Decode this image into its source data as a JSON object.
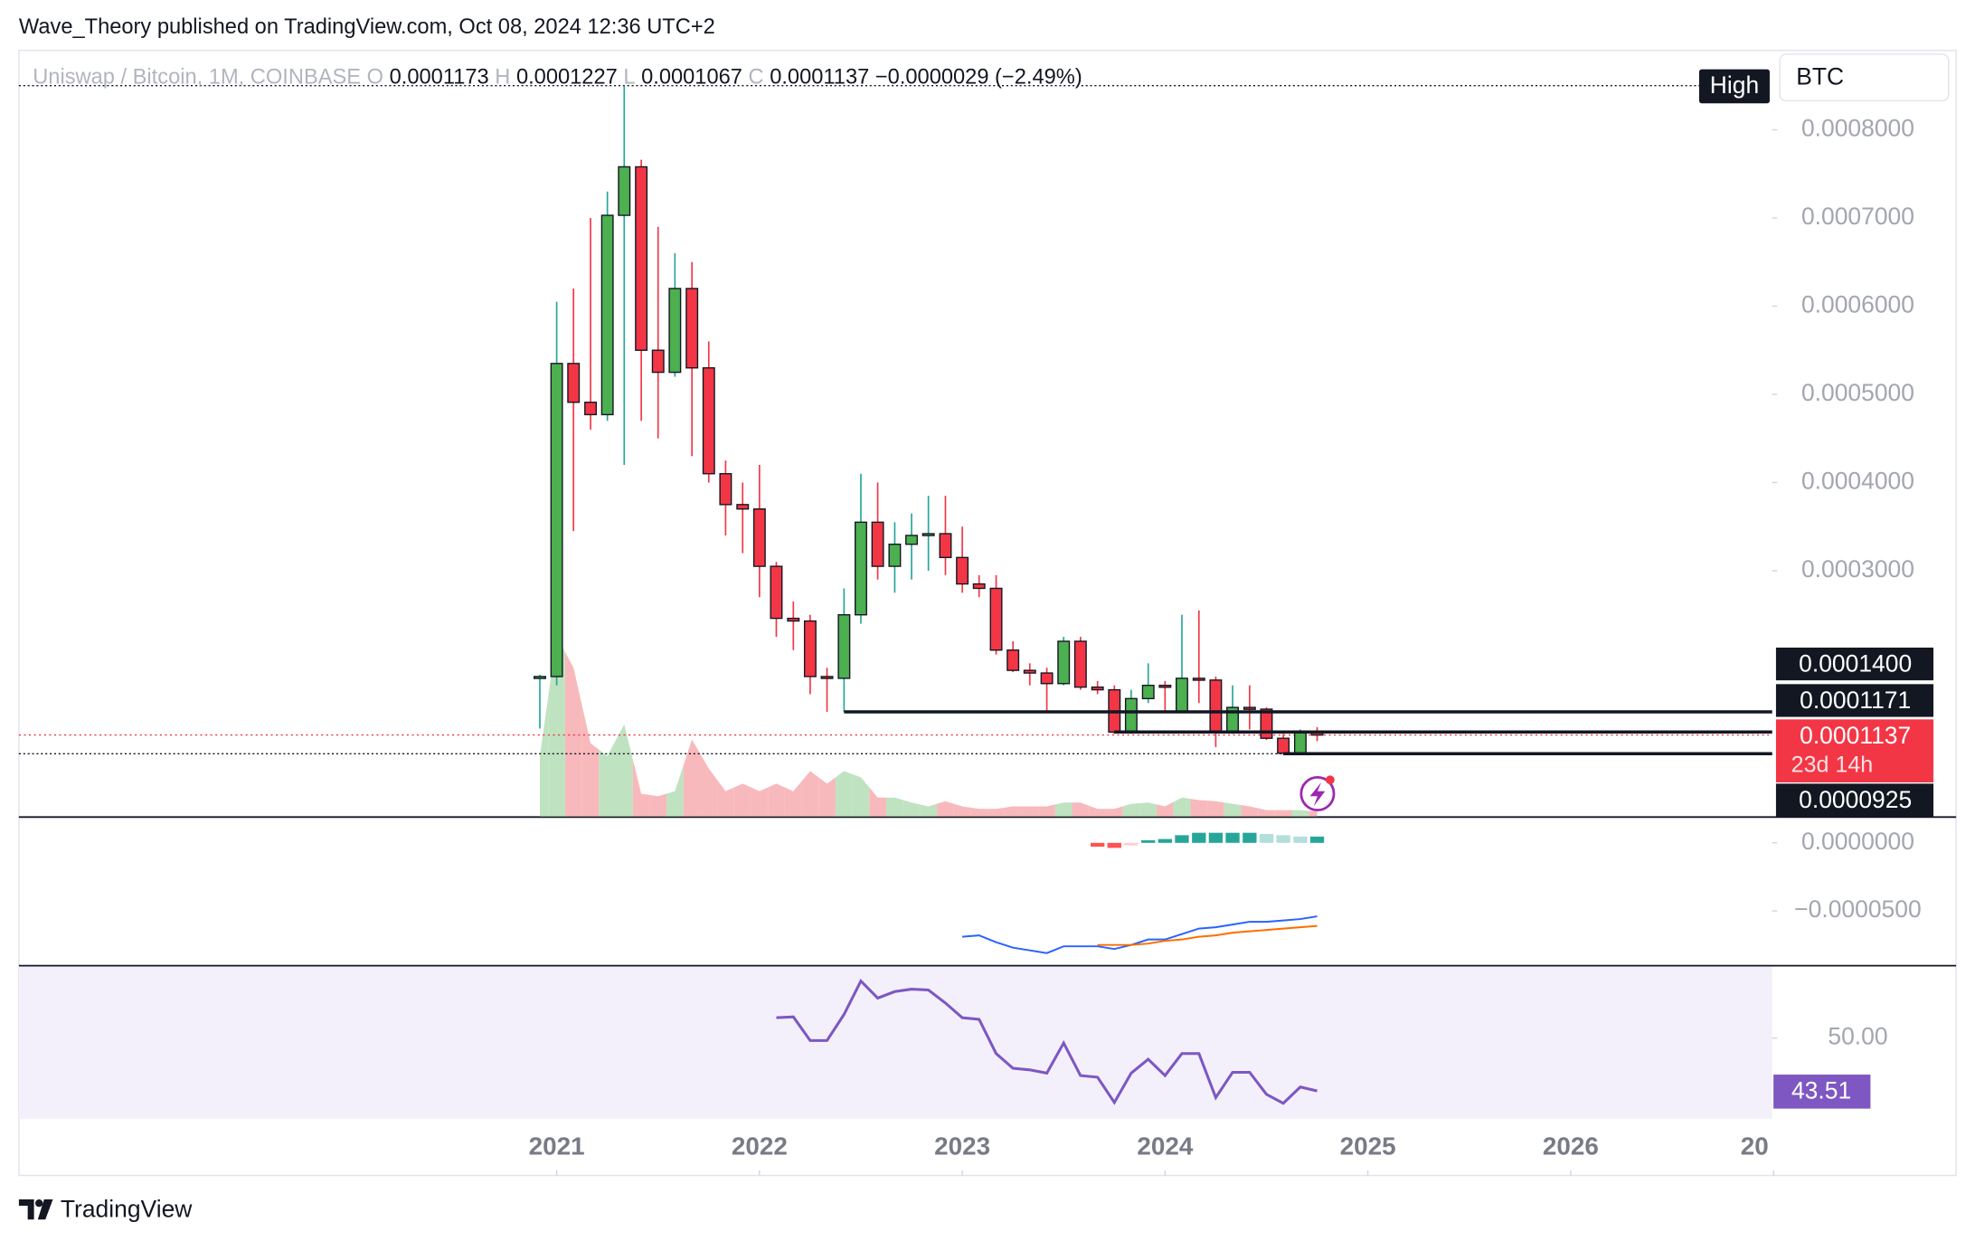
{
  "header": {
    "title": "Wave_Theory published on TradingView.com, Oct 08, 2024 12:36 UTC+2"
  },
  "footer": {
    "brand": "TradingView"
  },
  "chart_data": [
    {
      "type": "candlestick",
      "title": "Uniswap / Bitcoin, 1M, COINBASE",
      "currency": "BTC",
      "legend_keys": [
        "O",
        "H",
        "L",
        "C"
      ],
      "change_label": "−0.0000029 (−2.49%)",
      "high_label": "High",
      "countdown": "23d 14h",
      "up_color": "#4caf50",
      "down_color": "#f23645",
      "volume_up_color": "#bfe3c0",
      "volume_down_color": "#f8b9bc",
      "x": [
        2020.917,
        2021,
        2021.083,
        2021.167,
        2021.25,
        2021.333,
        2021.417,
        2021.5,
        2021.583,
        2021.667,
        2021.75,
        2021.833,
        2021.917,
        2022,
        2022.083,
        2022.167,
        2022.25,
        2022.333,
        2022.417,
        2022.5,
        2022.583,
        2022.667,
        2022.75,
        2022.833,
        2022.917,
        2023,
        2023.083,
        2023.167,
        2023.25,
        2023.333,
        2023.417,
        2023.5,
        2023.583,
        2023.667,
        2023.75,
        2023.833,
        2023.917,
        2024,
        2024.083,
        2024.167,
        2024.25,
        2024.333,
        2024.417,
        2024.5,
        2024.583,
        2024.667,
        2024.75
      ],
      "open": [
        0.000178,
        0.00018,
        0.000535,
        0.000491,
        0.000477,
        0.000703,
        0.000758,
        0.00055,
        0.000525,
        0.00062,
        0.00053,
        0.00041,
        0.000375,
        0.00037,
        0.000305,
        0.000246,
        0.000243,
        0.00018,
        0.000178,
        0.00025,
        0.000355,
        0.000305,
        0.00033,
        0.00034,
        0.000342,
        0.000315,
        0.000285,
        0.00028,
        0.00021,
        0.000187,
        0.000184,
        0.000172,
        0.00022,
        0.000168,
        0.000165,
        0.000117,
        0.000155,
        0.00017,
        0.00014,
        0.000178,
        0.000176,
        0.000117,
        0.000145,
        0.000143,
        0.00011,
        9.3e-05,
        0.0001173
      ],
      "high": [
        0.000182,
        0.000605,
        0.00062,
        0.0007,
        0.00073,
        0.00085,
        0.000766,
        0.00069,
        0.00066,
        0.00065,
        0.00056,
        0.000425,
        0.0004,
        0.00042,
        0.00031,
        0.000265,
        0.00025,
        0.00019,
        0.00028,
        0.00041,
        0.0004,
        0.000355,
        0.000365,
        0.000385,
        0.000385,
        0.00035,
        0.000295,
        0.000295,
        0.00022,
        0.000195,
        0.00019,
        0.000225,
        0.000225,
        0.000175,
        0.00017,
        0.000165,
        0.000195,
        0.000175,
        0.00025,
        0.000255,
        0.00018,
        0.00017,
        0.00017,
        0.000145,
        0.000115,
        0.00012,
        0.0001227
      ],
      "low": [
        0.000121,
        0.00017,
        0.000345,
        0.00046,
        0.00047,
        0.00042,
        0.00047,
        0.00045,
        0.00052,
        0.00043,
        0.0004,
        0.00034,
        0.00032,
        0.00027,
        0.000225,
        0.00021,
        0.00016,
        0.00014,
        0.00014,
        0.00024,
        0.00029,
        0.000275,
        0.00029,
        0.0003,
        0.000295,
        0.000275,
        0.00027,
        0.000205,
        0.000185,
        0.00017,
        0.00014,
        0.00017,
        0.000165,
        0.00016,
        0.000115,
        0.000115,
        0.00015,
        0.00014,
        0.00014,
        0.00015,
        0.0001,
        0.000115,
        0.00012,
        0.000108,
        9.25e-05,
        9.2e-05,
        0.0001067
      ],
      "close": [
        0.00018,
        0.000535,
        0.000491,
        0.000477,
        0.000703,
        0.000758,
        0.00055,
        0.000525,
        0.00062,
        0.00053,
        0.00041,
        0.000375,
        0.00037,
        0.000305,
        0.000246,
        0.000243,
        0.00018,
        0.000178,
        0.00025,
        0.000355,
        0.000305,
        0.00033,
        0.00034,
        0.000342,
        0.000315,
        0.000285,
        0.00028,
        0.00021,
        0.000187,
        0.000184,
        0.000172,
        0.00022,
        0.000168,
        0.000165,
        0.000117,
        0.000155,
        0.00017,
        0.000169,
        0.000178,
        0.000176,
        0.000117,
        0.000145,
        0.000143,
        0.00011,
        9.3e-05,
        0.000117,
        0.0001137
      ],
      "volume": [
        48,
        143,
        118,
        58,
        48,
        73,
        18,
        16,
        20,
        61,
        38,
        20,
        26,
        20,
        26,
        20,
        36,
        26,
        36,
        31,
        15,
        15,
        11,
        8,
        12,
        8,
        6,
        6,
        8,
        8,
        8,
        11,
        11,
        6,
        6,
        10,
        11,
        8,
        15,
        13,
        12,
        10,
        8,
        5,
        5,
        5,
        4
      ],
      "vlim": [
        0,
        150
      ],
      "levels": [
        {
          "value": 0.00014,
          "label": "0.0001400",
          "start": 2022.417
        },
        {
          "value": 0.0001171,
          "start": 2023.75
        },
        {
          "value": 9.25e-05,
          "start": 2024.583
        }
      ],
      "xlim": [
        2018.348,
        2026.994
      ],
      "xticks": [
        2021,
        2022,
        2023,
        2024,
        2025,
        2026,
        {
          "value": 2027,
          "label": "20"
        }
      ],
      "ylim": [
        2.14e-05,
        0.00089
      ],
      "yticks": [
        {
          "value": 0.0003,
          "label": "0.0003000"
        },
        {
          "value": 0.0004,
          "label": "0.0004000"
        },
        {
          "value": 0.0005,
          "label": "0.0005000"
        },
        {
          "value": 0.0006,
          "label": "0.0006000"
        },
        {
          "value": 0.0007,
          "label": "0.0007000"
        },
        {
          "value": 0.0008,
          "label": "0.0008000"
        }
      ]
    },
    {
      "type": "macd",
      "hist_x": [
        2023.667,
        2023.75,
        2023.833,
        2023.917,
        2024,
        2024.083,
        2024.167,
        2024.25,
        2024.333,
        2024.417,
        2024.5,
        2024.583,
        2024.667,
        2024.75
      ],
      "histogram": [
        -2.8e-06,
        -3.7e-06,
        -1.9e-06,
        1.9e-06,
        2.8e-06,
        5.6e-06,
        7.4e-06,
        7.4e-06,
        7.4e-06,
        7.4e-06,
        6.5e-06,
        5.6e-06,
        4.6e-06,
        4.6e-06
      ],
      "hist_colors": [
        "#26a69a",
        "#b2dfdb",
        "#ff5252",
        "#ffcdd2"
      ],
      "series": [
        {
          "color": "#2962ff",
          "x": [
            2023,
            2023.083,
            2023.167,
            2023.25,
            2023.333,
            2023.417,
            2023.5,
            2023.583,
            2023.667,
            2023.75,
            2023.833,
            2023.917,
            2024,
            2024.083,
            2024.167,
            2024.25,
            2024.333,
            2024.417,
            2024.5,
            2024.583,
            2024.667,
            2024.75
          ],
          "values": [
            -6.9e-05,
            -6.8e-05,
            -7.3e-05,
            -7.7e-05,
            -7.9e-05,
            -8.1e-05,
            -7.6e-05,
            -7.6e-05,
            -7.6e-05,
            -7.8e-05,
            -7.5e-05,
            -7.1e-05,
            -7.1e-05,
            -6.7e-05,
            -6.3e-05,
            -6.2e-05,
            -6e-05,
            -5.8e-05,
            -5.8e-05,
            -5.7e-05,
            -5.6e-05,
            -5.4e-05
          ]
        },
        {
          "color": "#ff6d00",
          "x": [
            2023.667,
            2023.75,
            2023.833,
            2023.917,
            2024,
            2024.083,
            2024.167,
            2024.25,
            2024.333,
            2024.417,
            2024.5,
            2024.583,
            2024.667,
            2024.75
          ],
          "values": [
            -7.5e-05,
            -7.5e-05,
            -7.5e-05,
            -7.4e-05,
            -7.2e-05,
            -7.1e-05,
            -6.9e-05,
            -6.8e-05,
            -6.6e-05,
            -6.5e-05,
            -6.4e-05,
            -6.3e-05,
            -6.2e-05,
            -6.1e-05
          ]
        }
      ],
      "ylim": [
        -8.98e-05,
        1.85e-05
      ],
      "yticks": [
        {
          "value": 0,
          "label": "0.0000000"
        },
        {
          "value": -5e-05,
          "label": "−0.0000500"
        }
      ]
    },
    {
      "type": "rsi",
      "color": "#7e57c2",
      "x": [
        2022.083,
        2022.167,
        2022.25,
        2022.333,
        2022.417,
        2022.5,
        2022.583,
        2022.667,
        2022.75,
        2022.833,
        2022.917,
        2023,
        2023.083,
        2023.167,
        2023.25,
        2023.333,
        2023.417,
        2023.5,
        2023.583,
        2023.667,
        2023.75,
        2023.833,
        2023.917,
        2024,
        2024.083,
        2024.167,
        2024.25,
        2024.333,
        2024.417,
        2024.5,
        2024.583,
        2024.667,
        2024.75
      ],
      "values": [
        52.5,
        52.6,
        49.7,
        49.7,
        52.9,
        57.0,
        54.9,
        55.7,
        56.0,
        55.9,
        54.3,
        52.5,
        52.3,
        48.1,
        46.3,
        46.1,
        45.7,
        49.4,
        45.4,
        45.2,
        42.1,
        45.7,
        47.4,
        45.4,
        48.1,
        48.1,
        42.7,
        45.8,
        45.8,
        43.1,
        42.0,
        44.0,
        43.51
      ],
      "ylim": [
        40.1,
        58.8
      ],
      "yticks": [
        {
          "value": 50,
          "label": "50.00"
        }
      ]
    }
  ]
}
